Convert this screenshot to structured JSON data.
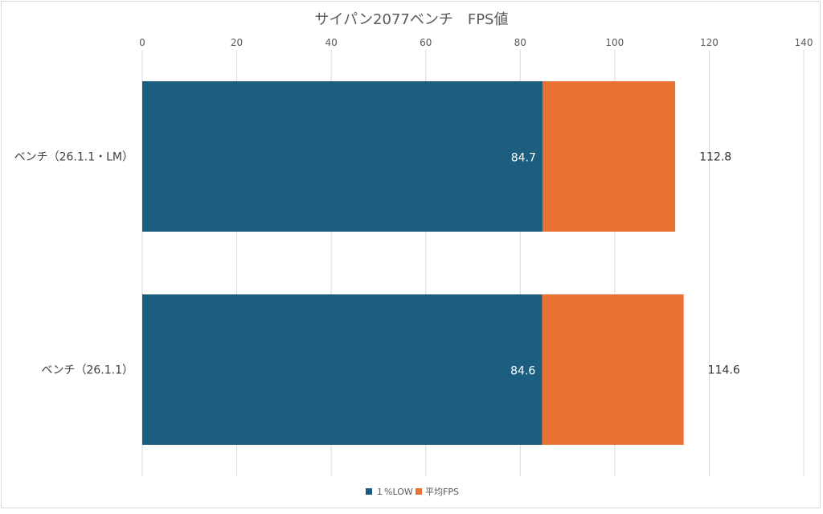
{
  "chart_data": {
    "type": "bar",
    "orientation": "horizontal",
    "stacked": "overlay",
    "title": "サイパン2077ベンチ　FPS値",
    "categories": [
      "ベンチ（26.1.1・LM）",
      "ベンチ（26.1.1）"
    ],
    "series": [
      {
        "name": "１%LOW",
        "values": [
          84.7,
          84.6
        ],
        "color": "#1b5e80",
        "label_color": "#ffffff"
      },
      {
        "name": "平均FPS",
        "values": [
          112.8,
          114.6
        ],
        "color": "#e97132",
        "label_color": "#333333"
      }
    ],
    "xlim": [
      0,
      140
    ],
    "xticks": [
      0,
      20,
      40,
      60,
      80,
      100,
      120,
      140
    ],
    "x_axis_position": "top",
    "grid": true,
    "legend": "bottom"
  }
}
